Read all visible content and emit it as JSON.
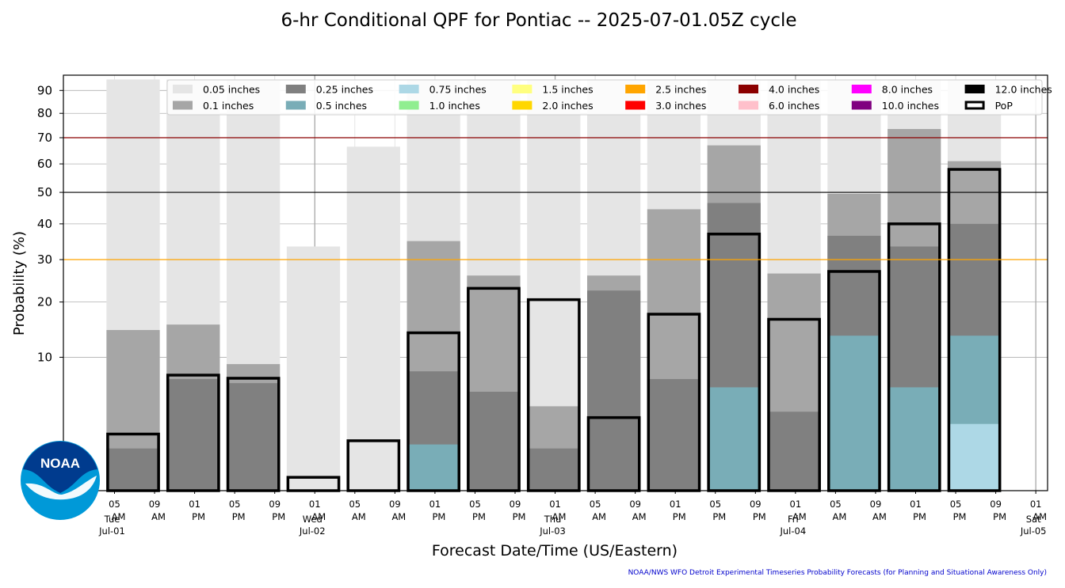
{
  "chart_data": {
    "type": "bar",
    "title": "6-hr Conditional QPF for Pontiac -- 2025-07-01.05Z cycle",
    "xlabel": "Forecast Date/Time (US/Eastern)",
    "ylabel": "Probability (%)",
    "credit": "NOAA/NWS WFO Detroit Experimental Timeseries Probability Forecasts (for Planning and Situational Awareness Only)",
    "y_scale": "sqrt",
    "ylim": [
      0,
      97
    ],
    "y_ticks": [
      10,
      20,
      30,
      40,
      50,
      60,
      70,
      80,
      90
    ],
    "grid": true,
    "legend_location": "top",
    "reference_lines": [
      {
        "value": 70,
        "color": "#8b0000"
      },
      {
        "value": 50,
        "color": "#000000"
      },
      {
        "value": 30,
        "color": "#ffa500"
      }
    ],
    "x_ticks": [
      {
        "hour": "05",
        "ampm": "AM",
        "day": "Tue",
        "date": "Jul-01",
        "t": 0
      },
      {
        "hour": "09",
        "ampm": "AM",
        "t": 1
      },
      {
        "hour": "01",
        "ampm": "PM",
        "t": 2
      },
      {
        "hour": "05",
        "ampm": "PM",
        "t": 3
      },
      {
        "hour": "09",
        "ampm": "PM",
        "t": 4
      },
      {
        "hour": "01",
        "ampm": "AM",
        "day": "Wed",
        "date": "Jul-02",
        "t": 5
      },
      {
        "hour": "05",
        "ampm": "AM",
        "t": 6
      },
      {
        "hour": "09",
        "ampm": "AM",
        "t": 7
      },
      {
        "hour": "01",
        "ampm": "PM",
        "t": 8
      },
      {
        "hour": "05",
        "ampm": "PM",
        "t": 9
      },
      {
        "hour": "09",
        "ampm": "PM",
        "t": 10
      },
      {
        "hour": "01",
        "ampm": "AM",
        "day": "Thu",
        "date": "Jul-03",
        "t": 11
      },
      {
        "hour": "05",
        "ampm": "AM",
        "t": 12
      },
      {
        "hour": "09",
        "ampm": "AM",
        "t": 13
      },
      {
        "hour": "01",
        "ampm": "PM",
        "t": 14
      },
      {
        "hour": "05",
        "ampm": "PM",
        "t": 15
      },
      {
        "hour": "09",
        "ampm": "PM",
        "t": 16
      },
      {
        "hour": "01",
        "ampm": "AM",
        "day": "Fri",
        "date": "Jul-04",
        "t": 17
      },
      {
        "hour": "05",
        "ampm": "AM",
        "t": 18
      },
      {
        "hour": "09",
        "ampm": "AM",
        "t": 19
      },
      {
        "hour": "01",
        "ampm": "PM",
        "t": 20
      },
      {
        "hour": "05",
        "ampm": "PM",
        "t": 21
      },
      {
        "hour": "09",
        "ampm": "PM",
        "t": 22
      },
      {
        "hour": "01",
        "ampm": "AM",
        "day": "Sat",
        "date": "Jul-05",
        "t": 23
      }
    ],
    "day_lines": [
      5,
      11,
      17,
      23
    ],
    "series": [
      {
        "name": "0.05 inches",
        "color": "#e5e5e5"
      },
      {
        "name": "0.1 inches",
        "color": "#a6a6a6"
      },
      {
        "name": "0.25 inches",
        "color": "#808080"
      },
      {
        "name": "0.5 inches",
        "color": "#79adb7"
      },
      {
        "name": "0.75 inches",
        "color": "#add8e6"
      },
      {
        "name": "1.0 inches",
        "color": "#90ee90"
      },
      {
        "name": "1.5 inches",
        "color": "#ffff80"
      },
      {
        "name": "2.0 inches",
        "color": "#ffd700"
      },
      {
        "name": "2.5 inches",
        "color": "#ffa500"
      },
      {
        "name": "3.0 inches",
        "color": "#ff0000"
      },
      {
        "name": "4.0 inches",
        "color": "#8b0000"
      },
      {
        "name": "6.0 inches",
        "color": "#ffc0cb"
      },
      {
        "name": "8.0 inches",
        "color": "#ff00ff"
      },
      {
        "name": "10.0 inches",
        "color": "#800080"
      },
      {
        "name": "12.0 inches",
        "color": "#000000"
      },
      {
        "name": "PoP",
        "color": "#ffffff",
        "outline": "#000000"
      }
    ],
    "periods": [
      {
        "t_start": -0.2,
        "values": [
          95,
          14.5,
          1,
          0,
          0
        ],
        "pop": 1.8
      },
      {
        "t_start": 1.3,
        "values": [
          95,
          15.5,
          7,
          0,
          0
        ],
        "pop": 7.5
      },
      {
        "t_start": 2.8,
        "values": [
          95,
          9,
          6.5,
          0,
          0
        ],
        "pop": 7.1
      },
      {
        "t_start": 4.3,
        "values": [
          33.5,
          0,
          0,
          0,
          0
        ],
        "pop": 0.1
      },
      {
        "t_start": 5.8,
        "values": [
          66.5,
          0,
          0,
          0,
          0
        ],
        "pop": 1.4
      },
      {
        "t_start": 7.3,
        "values": [
          95,
          35,
          8,
          1.2,
          0
        ],
        "pop": 14
      },
      {
        "t_start": 8.8,
        "values": [
          95,
          26,
          5.5,
          0,
          0
        ],
        "pop": 23
      },
      {
        "t_start": 10.3,
        "values": [
          95,
          4,
          1,
          0,
          0
        ],
        "pop": 20.5
      },
      {
        "t_start": 11.8,
        "values": [
          95,
          26,
          22.5,
          0,
          0
        ],
        "pop": 3
      },
      {
        "t_start": 13.3,
        "values": [
          95,
          44.5,
          7,
          0,
          0
        ],
        "pop": 17.5
      },
      {
        "t_start": 14.8,
        "values": [
          95,
          67,
          46.5,
          6,
          0
        ],
        "pop": 37
      },
      {
        "t_start": 16.3,
        "values": [
          95,
          26.5,
          3.5,
          0,
          0
        ],
        "pop": 16.5
      },
      {
        "t_start": 17.8,
        "values": [
          95,
          49.5,
          36.5,
          13.5,
          0
        ],
        "pop": 27
      },
      {
        "t_start": 19.3,
        "values": [
          95,
          73.5,
          33.5,
          6,
          0
        ],
        "pop": 40
      },
      {
        "t_start": 20.8,
        "values": [
          95,
          61,
          40,
          13.5,
          2.5
        ],
        "pop": 58
      }
    ]
  },
  "logo": {
    "text": "NOAA"
  }
}
